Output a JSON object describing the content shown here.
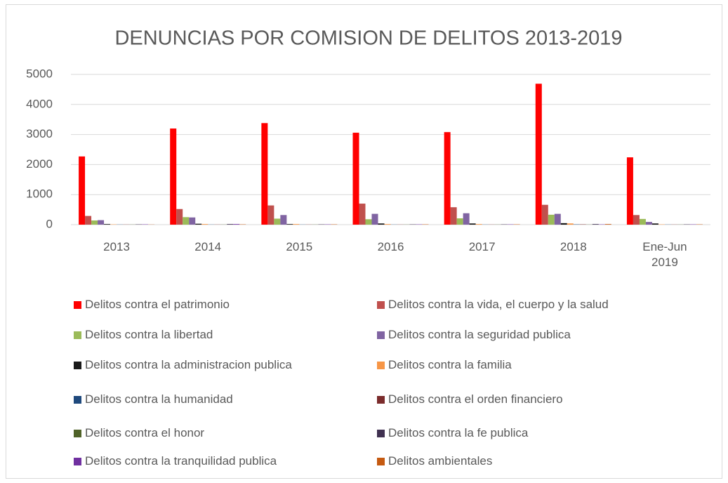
{
  "chart_data": {
    "type": "bar",
    "title": "DENUNCIAS POR COMISION DE DELITOS 2013-2019",
    "categories": [
      "2013",
      "2014",
      "2015",
      "2016",
      "2017",
      "2018",
      "Ene-Jun 2019"
    ],
    "ylim": [
      0,
      5000
    ],
    "yticks": [
      0,
      1000,
      2000,
      3000,
      4000,
      5000
    ],
    "grid": true,
    "series": [
      {
        "name": "Delitos contra el patrimonio",
        "color": "#ff0000",
        "values": [
          2270,
          3200,
          3380,
          3060,
          3080,
          4690,
          2240
        ]
      },
      {
        "name": "Delitos contra la vida, el cuerpo y la salud",
        "color": "#c0504d",
        "values": [
          290,
          520,
          640,
          700,
          580,
          660,
          320
        ]
      },
      {
        "name": "Delitos contra la libertad",
        "color": "#9bbb59",
        "values": [
          140,
          250,
          200,
          180,
          210,
          330,
          190
        ]
      },
      {
        "name": "Delitos contra la seguridad publica",
        "color": "#8064a2",
        "values": [
          150,
          240,
          320,
          360,
          380,
          360,
          90
        ]
      },
      {
        "name": "Delitos contra la administracion publica",
        "color": "#1a1a1a",
        "values": [
          20,
          30,
          20,
          40,
          40,
          50,
          40
        ]
      },
      {
        "name": "Delitos contra la familia",
        "color": "#f79646",
        "values": [
          10,
          20,
          20,
          20,
          20,
          40,
          10
        ]
      },
      {
        "name": "Delitos contra la humanidad",
        "color": "#1f497d",
        "values": [
          5,
          5,
          5,
          5,
          5,
          10,
          5
        ]
      },
      {
        "name": "Delitos contra el orden financiero",
        "color": "#7b2c2c",
        "values": [
          5,
          5,
          5,
          5,
          5,
          10,
          5
        ]
      },
      {
        "name": "Delitos contra el honor",
        "color": "#4f6228",
        "values": [
          5,
          5,
          5,
          5,
          5,
          5,
          5
        ]
      },
      {
        "name": "Delitos contra la fe publica",
        "color": "#403151",
        "values": [
          10,
          20,
          10,
          10,
          10,
          20,
          10
        ]
      },
      {
        "name": "Delitos contra la tranquilidad publica",
        "color": "#7030a0",
        "values": [
          10,
          20,
          10,
          10,
          10,
          10,
          10
        ]
      },
      {
        "name": "Delitos ambientales",
        "color": "#c55a11",
        "values": [
          5,
          10,
          10,
          10,
          10,
          20,
          10
        ]
      }
    ]
  }
}
